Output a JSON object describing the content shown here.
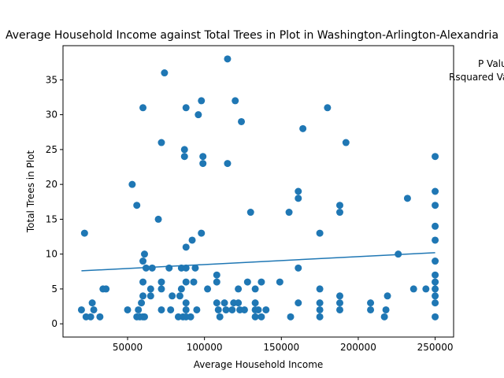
{
  "chart_data": {
    "type": "scatter",
    "title": "Average Household Income against Total Trees in Plot in Washington-Arlington-Alexandria",
    "xlabel": "Average Household Income",
    "ylabel": "Total Trees in Plot",
    "annotations": [
      "P Value:",
      "Rsquared Value:"
    ],
    "xlim": [
      8000,
      262000
    ],
    "ylim": [
      -1.9,
      39.9
    ],
    "xticks": [
      50000,
      100000,
      150000,
      200000,
      250000
    ],
    "yticks": [
      0,
      5,
      10,
      15,
      20,
      25,
      30,
      35
    ],
    "grid": false,
    "point_color": "#1f77b4",
    "line_color": "#1f77b4",
    "trendline": {
      "x": [
        20000,
        250000
      ],
      "y": [
        7.6,
        10.2
      ]
    },
    "points": [
      [
        22000,
        13
      ],
      [
        53000,
        20
      ],
      [
        56000,
        17
      ],
      [
        60000,
        31
      ],
      [
        74000,
        36
      ],
      [
        88000,
        31
      ],
      [
        98000,
        32
      ],
      [
        96000,
        30
      ],
      [
        72000,
        26
      ],
      [
        87000,
        25
      ],
      [
        87000,
        24
      ],
      [
        99000,
        24
      ],
      [
        99000,
        23
      ],
      [
        115000,
        38
      ],
      [
        120000,
        32
      ],
      [
        124000,
        29
      ],
      [
        115000,
        23
      ],
      [
        180000,
        31
      ],
      [
        164000,
        28
      ],
      [
        192000,
        26
      ],
      [
        130000,
        16
      ],
      [
        155000,
        16
      ],
      [
        161000,
        19
      ],
      [
        161000,
        18
      ],
      [
        188000,
        17
      ],
      [
        188000,
        16
      ],
      [
        175000,
        13
      ],
      [
        232000,
        18
      ],
      [
        250000,
        24
      ],
      [
        250000,
        19
      ],
      [
        250000,
        17
      ],
      [
        250000,
        14
      ],
      [
        250000,
        12
      ],
      [
        250000,
        9
      ],
      [
        226000,
        10
      ],
      [
        70000,
        15
      ],
      [
        98000,
        13
      ],
      [
        92000,
        12
      ],
      [
        88000,
        11
      ],
      [
        61000,
        10
      ],
      [
        60000,
        9
      ],
      [
        62000,
        8
      ],
      [
        66000,
        8
      ],
      [
        77000,
        8
      ],
      [
        85000,
        8
      ],
      [
        88000,
        8
      ],
      [
        94000,
        8
      ],
      [
        161000,
        8
      ],
      [
        108000,
        7
      ],
      [
        250000,
        7
      ],
      [
        60000,
        6
      ],
      [
        72000,
        6
      ],
      [
        88000,
        6
      ],
      [
        93000,
        6
      ],
      [
        108000,
        6
      ],
      [
        128000,
        6
      ],
      [
        137000,
        6
      ],
      [
        149000,
        6
      ],
      [
        250000,
        6
      ],
      [
        34000,
        5
      ],
      [
        36000,
        5
      ],
      [
        65000,
        5
      ],
      [
        72000,
        5
      ],
      [
        85000,
        5
      ],
      [
        102000,
        5
      ],
      [
        122000,
        5
      ],
      [
        133000,
        5
      ],
      [
        175000,
        5
      ],
      [
        236000,
        5
      ],
      [
        244000,
        5
      ],
      [
        250000,
        5
      ],
      [
        60000,
        4
      ],
      [
        65000,
        4
      ],
      [
        79000,
        4
      ],
      [
        84000,
        4
      ],
      [
        188000,
        4
      ],
      [
        219000,
        4
      ],
      [
        250000,
        4
      ],
      [
        27000,
        3
      ],
      [
        59000,
        3
      ],
      [
        88000,
        3
      ],
      [
        108000,
        3
      ],
      [
        113000,
        3
      ],
      [
        119000,
        3
      ],
      [
        122000,
        3
      ],
      [
        133000,
        3
      ],
      [
        161000,
        3
      ],
      [
        175000,
        3
      ],
      [
        188000,
        3
      ],
      [
        208000,
        3
      ],
      [
        250000,
        3
      ],
      [
        20000,
        2
      ],
      [
        28000,
        2
      ],
      [
        50000,
        2
      ],
      [
        57000,
        2
      ],
      [
        72000,
        2
      ],
      [
        78000,
        2
      ],
      [
        88000,
        2
      ],
      [
        95000,
        2
      ],
      [
        109000,
        2
      ],
      [
        114000,
        2
      ],
      [
        118000,
        2
      ],
      [
        123000,
        2
      ],
      [
        126000,
        2
      ],
      [
        133000,
        2
      ],
      [
        135000,
        2
      ],
      [
        140000,
        2
      ],
      [
        175000,
        2
      ],
      [
        188000,
        2
      ],
      [
        208000,
        2
      ],
      [
        218000,
        2
      ],
      [
        23000,
        1
      ],
      [
        26000,
        1
      ],
      [
        32000,
        1
      ],
      [
        56000,
        1
      ],
      [
        58000,
        1
      ],
      [
        60000,
        1
      ],
      [
        61000,
        1
      ],
      [
        83000,
        1
      ],
      [
        86000,
        1
      ],
      [
        88000,
        1
      ],
      [
        91000,
        1
      ],
      [
        110000,
        1
      ],
      [
        133000,
        1
      ],
      [
        137000,
        1
      ],
      [
        156000,
        1
      ],
      [
        175000,
        1
      ],
      [
        217000,
        1
      ],
      [
        250000,
        1
      ]
    ]
  }
}
